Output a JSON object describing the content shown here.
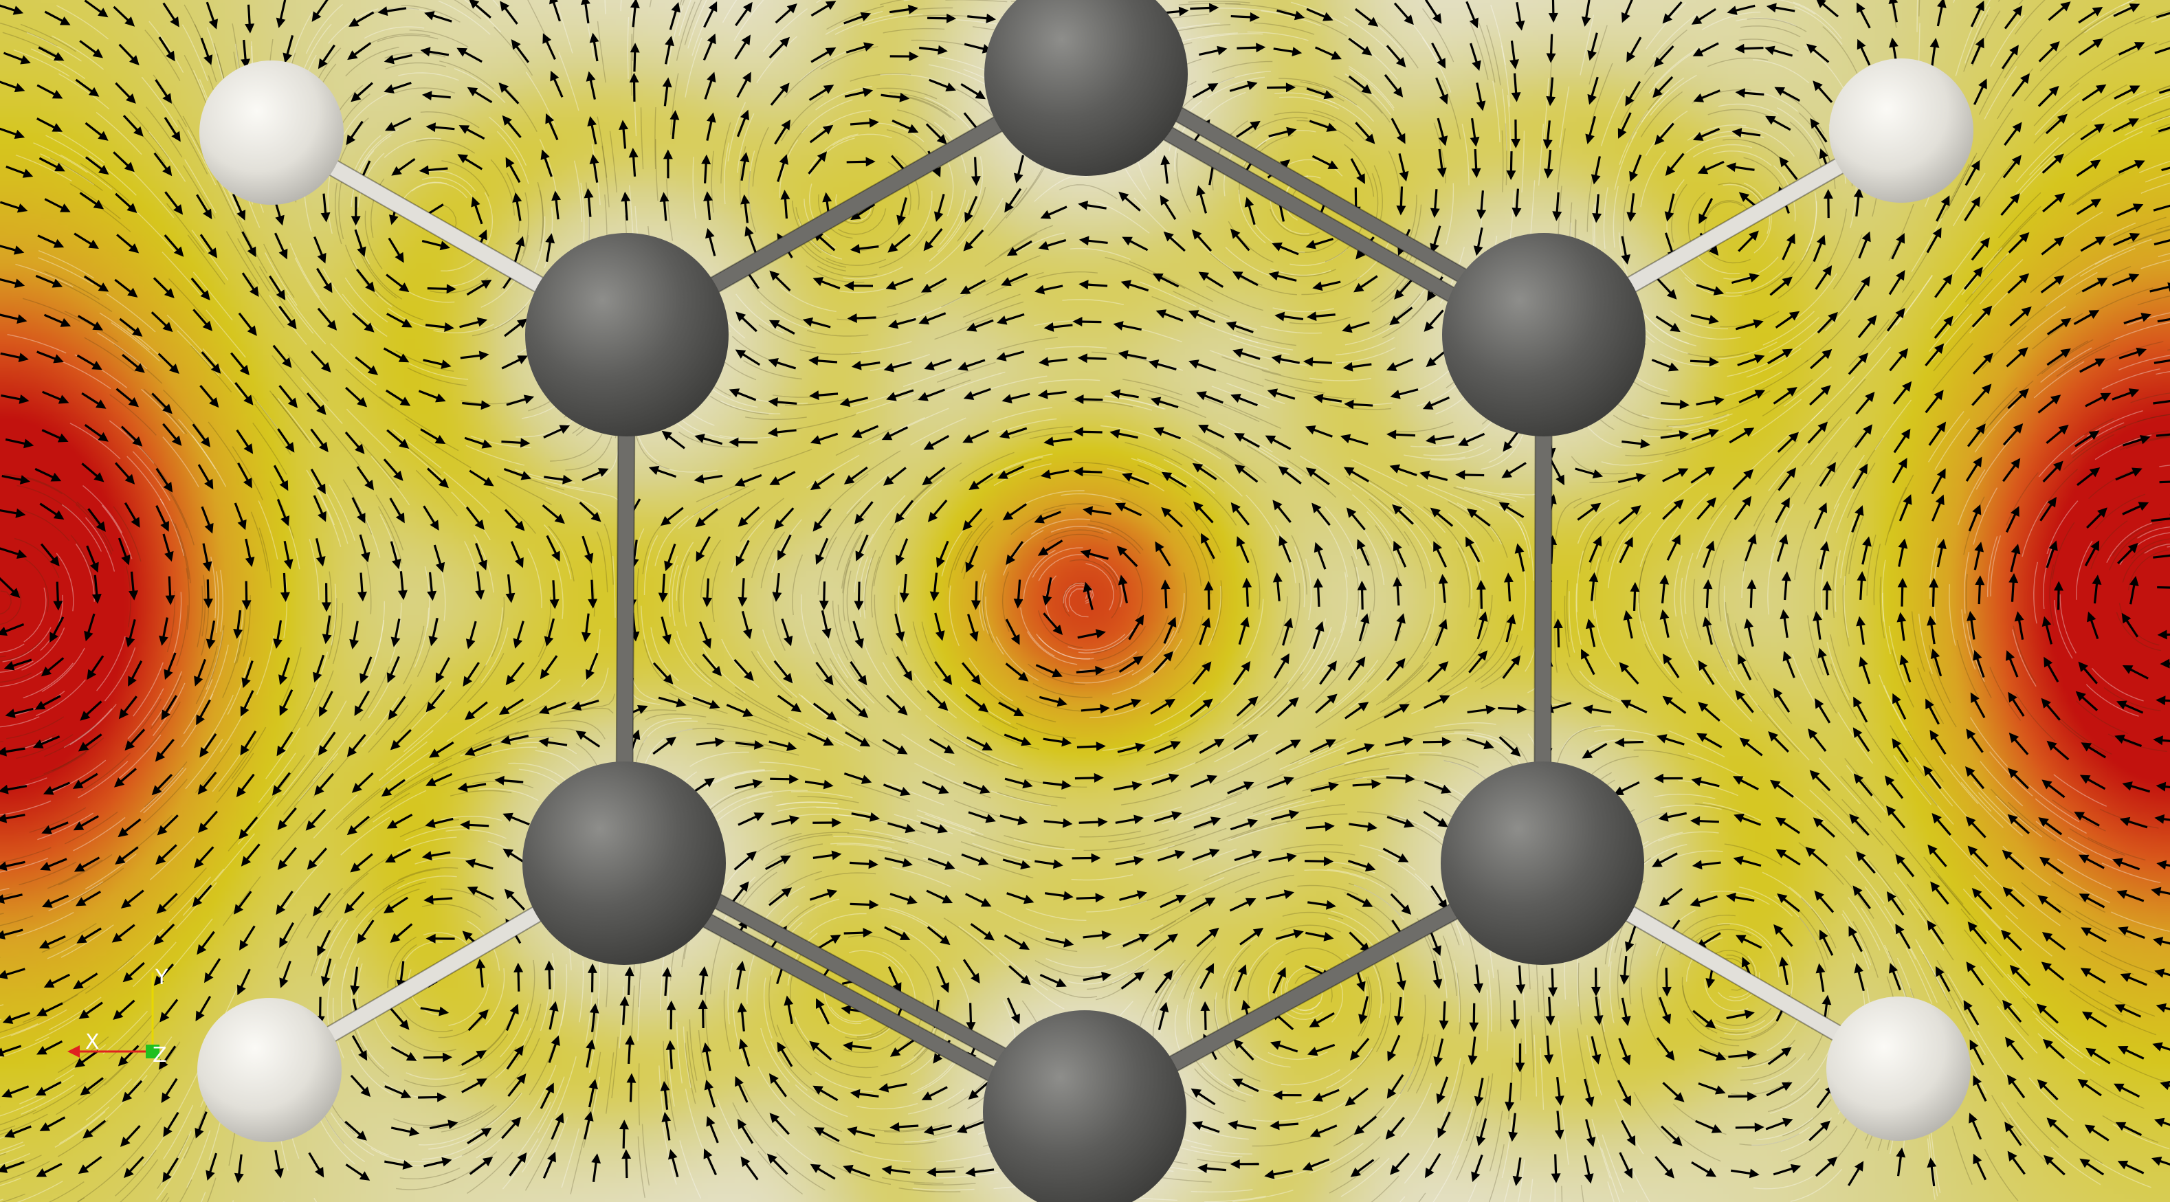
{
  "molecule": {
    "atoms": [
      {
        "element": "C"
      },
      {
        "element": "C"
      },
      {
        "element": "C"
      },
      {
        "element": "C"
      },
      {
        "element": "C"
      },
      {
        "element": "C"
      },
      {
        "element": "H"
      },
      {
        "element": "H"
      },
      {
        "element": "H"
      },
      {
        "element": "H"
      }
    ],
    "bonds": [
      {
        "order": 1
      },
      {
        "order": 2
      },
      {
        "order": 1
      },
      {
        "order": 1
      },
      {
        "order": 2
      },
      {
        "order": 1
      },
      {
        "order": 1
      },
      {
        "order": 1
      },
      {
        "order": 1
      },
      {
        "order": 1
      }
    ]
  },
  "field": {
    "colormap": [
      "#e7e4d6",
      "#d9d38a",
      "#d6c61e",
      "#d9a423",
      "#d8561b",
      "#c2120e"
    ]
  },
  "colors": {
    "carbon": "#5a5a58",
    "hydrogen": "#e4e2dc",
    "bond": "#6e6d69",
    "bond_h": "#e2e0da",
    "arrow": "#000000",
    "axis_x": "#e02020",
    "axis_y": "#e8d800",
    "axis_z": "#20c020"
  },
  "orientation_axes": {
    "x_label": "X",
    "y_label": "Y",
    "z_label": "Z"
  }
}
